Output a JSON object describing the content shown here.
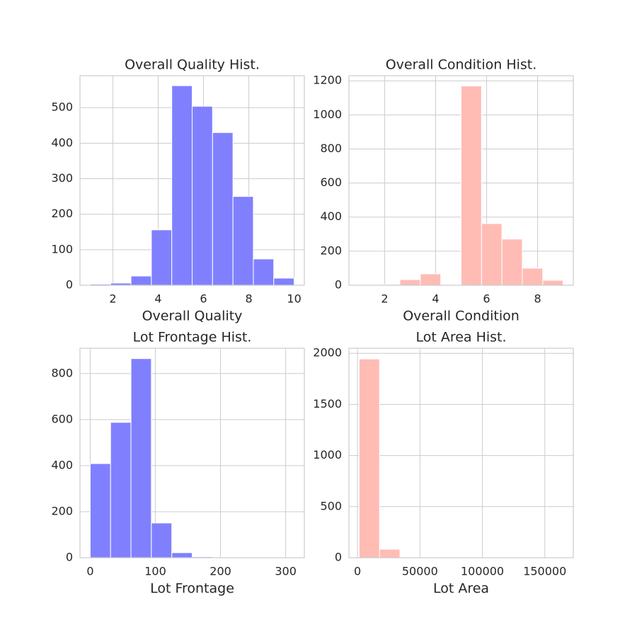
{
  "chart_data": [
    {
      "type": "histogram",
      "title": "Overall Quality Hist.",
      "xlabel": "Overall Quality",
      "bins": [
        1,
        1.9,
        2.8,
        3.7,
        4.6,
        5.5,
        6.4,
        7.3,
        8.2,
        9.1,
        10
      ],
      "counts": [
        3,
        6,
        26,
        156,
        562,
        504,
        430,
        250,
        74,
        20
      ],
      "color": "#8080ff",
      "xlim": [
        0.55,
        10.45
      ],
      "ylim": [
        0,
        590
      ],
      "xticks": [
        2,
        4,
        6,
        8,
        10
      ],
      "yticks": [
        0,
        100,
        200,
        300,
        400,
        500
      ],
      "grid": true
    },
    {
      "type": "histogram",
      "title": "Overall Condition Hist.",
      "xlabel": "Overall Condition",
      "bins": [
        1,
        1.8,
        2.6,
        3.4,
        4.2,
        5,
        5.8,
        6.6,
        7.4,
        8.2,
        9
      ],
      "counts": [
        2,
        5,
        33,
        67,
        0,
        1170,
        362,
        271,
        100,
        29
      ],
      "color": "#ffbcb5",
      "xlim": [
        0.6,
        9.4
      ],
      "ylim": [
        0,
        1230
      ],
      "xticks": [
        2,
        4,
        6,
        8
      ],
      "yticks": [
        0,
        200,
        400,
        600,
        800,
        1000,
        1200
      ],
      "grid": true
    },
    {
      "type": "histogram",
      "title": "Lot Frontage Hist.",
      "xlabel": "Lot Frontage",
      "bins": [
        0,
        31.3,
        62.6,
        93.9,
        125.2,
        156.5,
        187.8,
        219.1,
        250.4,
        281.7,
        313
      ],
      "counts": [
        409,
        588,
        865,
        151,
        22,
        4,
        1,
        0,
        0,
        2
      ],
      "color": "#8080ff",
      "xlim": [
        -15.65,
        328.65
      ],
      "ylim": [
        0,
        910
      ],
      "xticks": [
        0,
        100,
        200,
        300
      ],
      "yticks": [
        0,
        200,
        400,
        600,
        800
      ],
      "grid": true
    },
    {
      "type": "histogram",
      "title": "Lot Area Hist.",
      "xlabel": "Lot Area",
      "bins": [
        1300,
        17636,
        33972,
        50308,
        66644,
        82980,
        99316,
        115652,
        131988,
        148324,
        164660
      ],
      "counts": [
        1945,
        83,
        3,
        1,
        0,
        0,
        0,
        0,
        0,
        1
      ],
      "color": "#ffbcb5",
      "xlim": [
        -6868,
        172828
      ],
      "ylim": [
        0,
        2050
      ],
      "xticks": [
        0,
        50000,
        100000,
        150000
      ],
      "yticks": [
        0,
        500,
        1000,
        1500,
        2000
      ],
      "grid": true
    }
  ]
}
